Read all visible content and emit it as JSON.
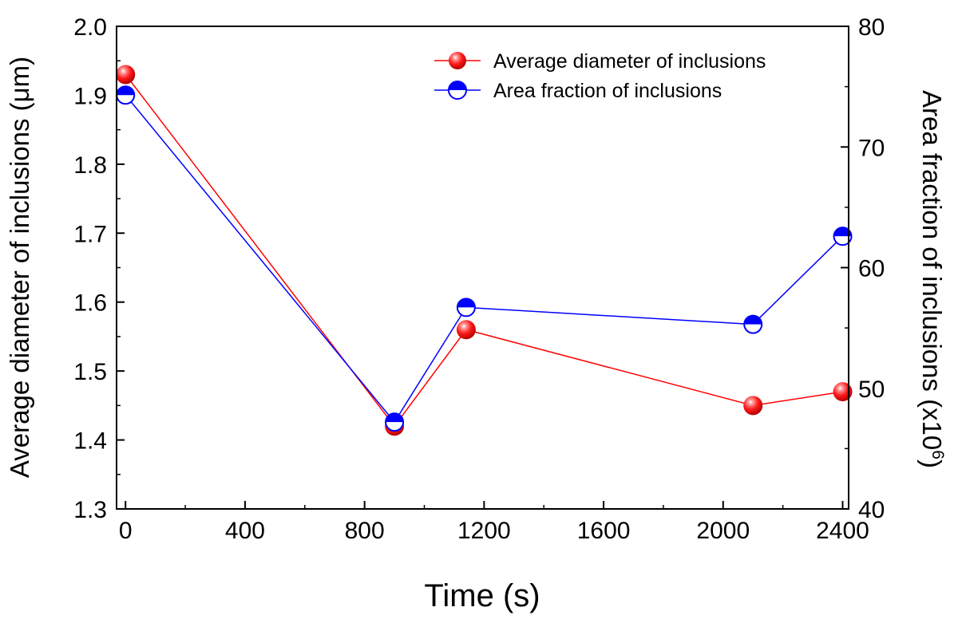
{
  "chart_data": {
    "type": "line",
    "title": "",
    "xlabel": "Time (s)",
    "ylabel": "Average diameter of inclusions (μm)",
    "y2label": "Area fraction of inclusions (x10",
    "y2label_exponent": "6",
    "y2label_close": ")",
    "xlim": [
      -30,
      2420
    ],
    "ylim": [
      1.3,
      2.0
    ],
    "y2lim": [
      40,
      80
    ],
    "xticks": [
      0,
      400,
      800,
      1200,
      1600,
      2000,
      2400
    ],
    "xtick_labels": [
      "0",
      "400",
      "800",
      "1200",
      "1600",
      "2000",
      "2400"
    ],
    "yticks": [
      1.3,
      1.4,
      1.5,
      1.6,
      1.7,
      1.8,
      1.9,
      2.0
    ],
    "ytick_labels": [
      "1.3",
      "1.4",
      "1.5",
      "1.6",
      "1.7",
      "1.8",
      "1.9",
      "2.0"
    ],
    "y2ticks": [
      40,
      50,
      60,
      70,
      80
    ],
    "y2tick_labels": [
      "40",
      "50",
      "60",
      "70",
      "80"
    ],
    "legend_position": "top-right",
    "series": [
      {
        "name": "Average diameter of inclusions",
        "axis": "left",
        "color": "#ff0000",
        "marker": "sphere",
        "x": [
          0,
          900,
          1140,
          2100,
          2400
        ],
        "values": [
          1.93,
          1.42,
          1.56,
          1.45,
          1.47
        ]
      },
      {
        "name": "Area fraction of inclusions",
        "axis": "right",
        "color": "#0000ff",
        "marker": "half-filled-circle",
        "x": [
          0,
          900,
          1140,
          2100,
          2400
        ],
        "values": [
          74.3,
          47.2,
          56.7,
          55.3,
          62.6
        ]
      }
    ]
  }
}
